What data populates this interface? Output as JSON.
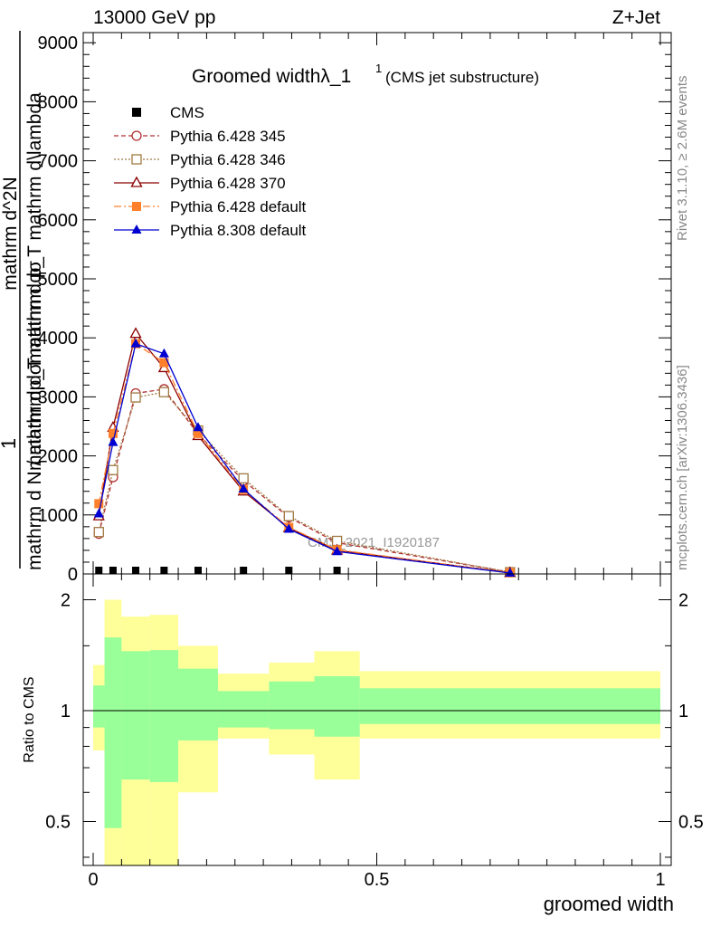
{
  "header": {
    "left": "13000 GeV pp",
    "right": "Z+Jet"
  },
  "side_labels": {
    "top": "Rivet 3.1.10, ≥ 2.6M events",
    "bottom": "mcplots.cern.ch [arXiv:1306.3436]"
  },
  "chart_data": [
    {
      "type": "line",
      "title": "Groomed widthλ_1",
      "title_superscript": "1",
      "subtitle": "(CMS jet substructure)",
      "ylabel_fraction_top": "1",
      "ylabel_fraction_bottom": "mathrm d N / mathrm dσ",
      "ylabel_overlap_top": "mathrm d^2N",
      "ylabel_overlap_mid": "mathrm d p_T mathrm d\\lambda",
      "ylabel_overlap_low": "mathrm dp_T mathrm dσ",
      "xlabel": "groomed width",
      "annotation": "CMS_2021_I1920187",
      "xlim": [
        0,
        1
      ],
      "ylim": [
        0,
        9000
      ],
      "yticks": [
        0,
        1000,
        2000,
        3000,
        4000,
        5000,
        6000,
        7000,
        8000,
        9000
      ],
      "ytick_labels": [
        "0",
        "1000",
        "2000",
        "3000",
        "4000",
        "5000",
        "6000",
        "7000",
        "8000",
        "9000"
      ],
      "x_points": [
        0.01,
        0.035,
        0.075,
        0.125,
        0.185,
        0.265,
        0.345,
        0.43,
        0.735
      ],
      "legend_position": "top-left",
      "series": [
        {
          "name": "CMS",
          "color": "#000000",
          "marker": "square-filled",
          "dash": "none",
          "values": [
            10,
            10,
            10,
            10,
            10,
            10,
            10,
            10,
            null
          ]
        },
        {
          "name": "Pythia 6.428 345",
          "color": "#b03030",
          "marker": "circle-open",
          "dash": "dashed",
          "values": [
            680,
            1640,
            3060,
            3130,
            2370,
            1580,
            960,
            530,
            30
          ]
        },
        {
          "name": "Pythia 6.428 346",
          "color": "#a07840",
          "marker": "square-open",
          "dash": "dotted",
          "values": [
            710,
            1760,
            2990,
            3080,
            2430,
            1620,
            980,
            560,
            30
          ]
        },
        {
          "name": "Pythia 6.428 370",
          "color": "#8b0000",
          "marker": "triangle-open",
          "dash": "solid",
          "values": [
            980,
            2480,
            4070,
            3490,
            2340,
            1400,
            780,
            400,
            20
          ]
        },
        {
          "name": "Pythia 6.428 default",
          "color": "#ff7f2a",
          "marker": "square-filled",
          "dash": "dashdot",
          "values": [
            1190,
            2380,
            3900,
            3580,
            2380,
            1430,
            790,
            410,
            20
          ]
        },
        {
          "name": "Pythia 8.308 default",
          "color": "#0000d0",
          "marker": "triangle-filled",
          "dash": "solid",
          "values": [
            1020,
            2230,
            3900,
            3730,
            2480,
            1440,
            760,
            380,
            15
          ]
        }
      ]
    },
    {
      "type": "area",
      "ylabel": "Ratio to CMS",
      "xlabel": "groomed width",
      "xlim": [
        0,
        1
      ],
      "ylim": [
        0.38,
        2.35
      ],
      "log_y": true,
      "yticks": [
        0.5,
        1,
        2
      ],
      "ytick_labels": [
        "0.5",
        "1",
        "2"
      ],
      "xticks": [
        0,
        0.5,
        1
      ],
      "xtick_labels": [
        "0",
        "0.5",
        "1"
      ],
      "reference_line": 1,
      "band_colors": {
        "outer": "#ffff99",
        "inner": "#99ff99"
      },
      "bins": [
        {
          "lo": 0.0,
          "hi": 0.02,
          "outer": [
            0.78,
            1.33
          ],
          "inner": [
            0.9,
            1.17
          ]
        },
        {
          "lo": 0.02,
          "hi": 0.05,
          "outer": [
            0.3,
            2.0
          ],
          "inner": [
            0.48,
            1.58
          ]
        },
        {
          "lo": 0.05,
          "hi": 0.1,
          "outer": [
            0.3,
            1.8
          ],
          "inner": [
            0.65,
            1.45
          ]
        },
        {
          "lo": 0.1,
          "hi": 0.15,
          "outer": [
            0.3,
            1.82
          ],
          "inner": [
            0.64,
            1.46
          ]
        },
        {
          "lo": 0.15,
          "hi": 0.22,
          "outer": [
            0.6,
            1.5
          ],
          "inner": [
            0.83,
            1.3
          ]
        },
        {
          "lo": 0.22,
          "hi": 0.31,
          "outer": [
            0.84,
            1.26
          ],
          "inner": [
            0.9,
            1.13
          ]
        },
        {
          "lo": 0.31,
          "hi": 0.39,
          "outer": [
            0.76,
            1.35
          ],
          "inner": [
            0.89,
            1.2
          ]
        },
        {
          "lo": 0.39,
          "hi": 0.47,
          "outer": [
            0.65,
            1.45
          ],
          "inner": [
            0.85,
            1.24
          ]
        },
        {
          "lo": 0.47,
          "hi": 1.0,
          "outer": [
            0.84,
            1.28
          ],
          "inner": [
            0.92,
            1.15
          ]
        }
      ]
    }
  ]
}
